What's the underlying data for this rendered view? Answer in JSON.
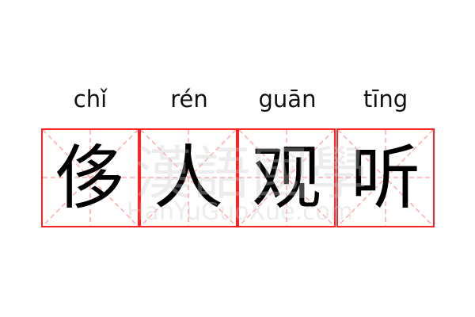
{
  "word": [
    {
      "pinyin": "chǐ",
      "hanzi": "侈"
    },
    {
      "pinyin": "rén",
      "hanzi": "人"
    },
    {
      "pinyin": "guān",
      "hanzi": "观"
    },
    {
      "pinyin": "tīng",
      "hanzi": "听"
    }
  ],
  "watermark": {
    "chinese": "漢語國學",
    "latin": "HanYuGuoXue.com"
  },
  "colors": {
    "grid": "#ff2222",
    "guide": "#ffaaaa",
    "text": "#000000"
  }
}
